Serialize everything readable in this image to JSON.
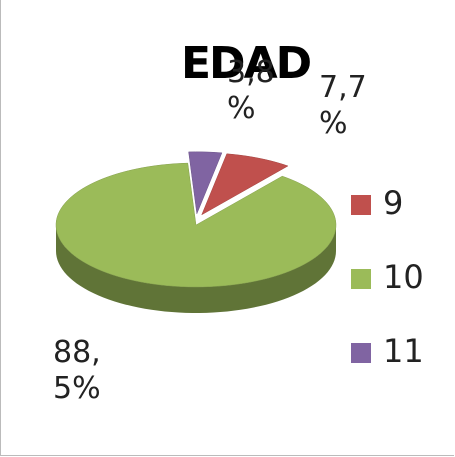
{
  "chart_data": {
    "type": "pie",
    "title": "EDAD",
    "categories": [
      "9",
      "10",
      "11"
    ],
    "values": [
      7.7,
      88.5,
      3.8
    ],
    "value_labels": [
      "7,7 %",
      "88, 5%",
      "3,8 %"
    ],
    "colors": [
      "#c0504d",
      "#9bbb59",
      "#8064a2"
    ],
    "legend": "right"
  }
}
